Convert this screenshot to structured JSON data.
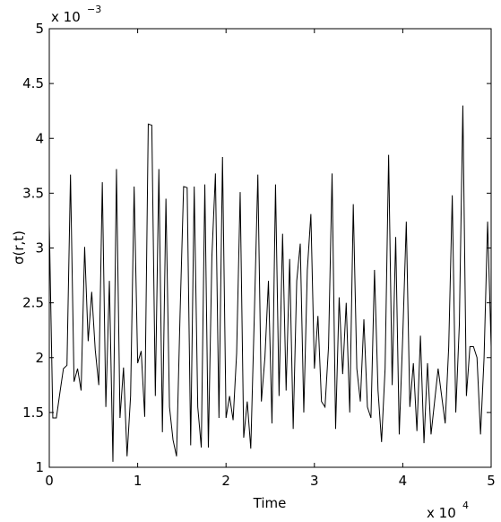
{
  "chart_data": {
    "type": "line",
    "xlabel": "Time",
    "ylabel": "σ(r,t)",
    "x_multiplier": {
      "base": "x 10",
      "exponent": "4"
    },
    "y_multiplier": {
      "base": "x 10",
      "exponent": "−3"
    },
    "color": "#000000",
    "xlim": [
      0,
      5
    ],
    "ylim": [
      1,
      5
    ],
    "xticks": [
      0,
      1,
      2,
      3,
      4,
      5
    ],
    "yticks": [
      1,
      1.5,
      2,
      2.5,
      3,
      3.5,
      4,
      4.5,
      5
    ],
    "x": [
      0,
      0.04,
      0.08,
      0.12,
      0.16,
      0.2,
      0.24,
      0.28,
      0.32,
      0.36,
      0.4,
      0.44,
      0.48,
      0.52,
      0.56,
      0.6,
      0.64,
      0.68,
      0.72,
      0.76,
      0.8,
      0.84,
      0.88,
      0.92,
      0.96,
      1,
      1.04,
      1.08,
      1.12,
      1.16,
      1.2,
      1.24,
      1.28,
      1.32,
      1.36,
      1.4,
      1.44,
      1.48,
      1.52,
      1.56,
      1.6,
      1.64,
      1.68,
      1.72,
      1.76,
      1.8,
      1.84,
      1.88,
      1.92,
      1.96,
      2,
      2.04,
      2.08,
      2.12,
      2.16,
      2.2,
      2.24,
      2.28,
      2.32,
      2.36,
      2.4,
      2.44,
      2.48,
      2.52,
      2.56,
      2.6,
      2.64,
      2.68,
      2.72,
      2.76,
      2.8,
      2.84,
      2.88,
      2.92,
      2.96,
      3,
      3.04,
      3.08,
      3.12,
      3.16,
      3.2,
      3.24,
      3.28,
      3.32,
      3.36,
      3.4,
      3.44,
      3.48,
      3.52,
      3.56,
      3.6,
      3.64,
      3.68,
      3.72,
      3.76,
      3.8,
      3.84,
      3.88,
      3.92,
      3.96,
      4,
      4.04,
      4.08,
      4.12,
      4.16,
      4.2,
      4.24,
      4.28,
      4.32,
      4.36,
      4.4,
      4.44,
      4.48,
      4.52,
      4.56,
      4.6,
      4.64,
      4.68,
      4.72,
      4.76,
      4.8,
      4.84,
      4.88,
      4.92,
      4.96,
      5
    ],
    "values": [
      3.22,
      1.45,
      1.45,
      1.68,
      1.9,
      1.93,
      3.67,
      1.78,
      1.9,
      1.7,
      3.01,
      2.15,
      2.6,
      2.07,
      1.75,
      3.6,
      1.55,
      2.7,
      1.05,
      3.72,
      1.45,
      1.91,
      1.1,
      1.65,
      3.56,
      1.95,
      2.06,
      1.46,
      4.13,
      4.12,
      1.65,
      3.72,
      1.32,
      3.45,
      1.55,
      1.25,
      1.1,
      2.4,
      3.56,
      3.55,
      1.2,
      3.56,
      1.55,
      1.18,
      3.58,
      1.18,
      2.92,
      3.68,
      1.45,
      3.83,
      1.45,
      1.65,
      1.43,
      2.04,
      3.51,
      1.27,
      1.6,
      1.17,
      2.38,
      3.67,
      1.6,
      2.0,
      2.7,
      1.4,
      3.58,
      1.65,
      3.13,
      1.7,
      2.9,
      1.35,
      2.7,
      3.04,
      1.5,
      2.8,
      3.31,
      1.9,
      2.38,
      1.6,
      1.55,
      2.1,
      3.68,
      1.35,
      2.55,
      1.85,
      2.5,
      1.5,
      3.4,
      1.9,
      1.6,
      2.35,
      1.55,
      1.45,
      2.8,
      1.7,
      1.23,
      1.9,
      3.85,
      1.75,
      3.1,
      1.3,
      2.2,
      3.24,
      1.55,
      1.95,
      1.33,
      2.2,
      1.22,
      1.95,
      1.3,
      1.6,
      1.9,
      1.65,
      1.4,
      2.1,
      3.48,
      1.5,
      2.3,
      4.3,
      1.65,
      2.1,
      2.1,
      2.0,
      1.3,
      2.0,
      3.24,
      2.1
    ]
  }
}
